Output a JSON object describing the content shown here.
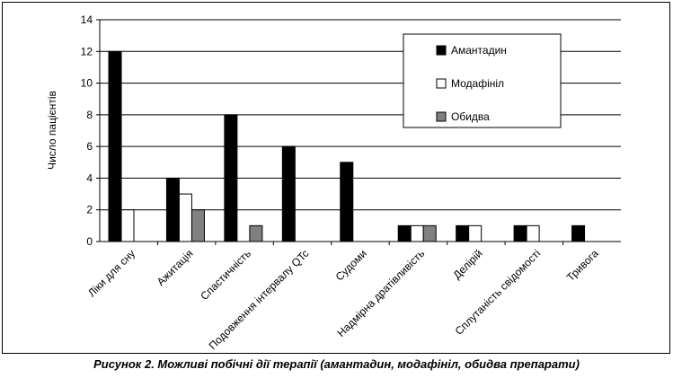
{
  "caption": "Рисунок 2. Можливі побічні дії терапії (амантадин, модафініл, обидва препарати)",
  "chart_data": {
    "type": "bar",
    "ylabel": "Число пацієнтів",
    "ylim": [
      0,
      14
    ],
    "yticks": [
      0,
      2,
      4,
      6,
      8,
      10,
      12,
      14
    ],
    "grid": true,
    "legend_position": "top-right",
    "categories": [
      "Ліки для сну",
      "Ажитація",
      "Спастичність",
      "Подовження інтервалу QTc",
      "Судоми",
      "Надмірна дратівливість",
      "Делірій",
      "Сплутаність свідомості",
      "Тривога"
    ],
    "series": [
      {
        "name": "Амантадин",
        "color": "#000000",
        "values": [
          12,
          4,
          8,
          6,
          5,
          1,
          1,
          1,
          1
        ]
      },
      {
        "name": "Модафініл",
        "color": "#ffffff",
        "values": [
          2,
          3,
          0,
          0,
          0,
          1,
          1,
          1,
          0
        ]
      },
      {
        "name": "Обидва",
        "color": "#808080",
        "values": [
          0,
          2,
          1,
          0,
          0,
          1,
          0,
          0,
          0
        ]
      }
    ]
  }
}
